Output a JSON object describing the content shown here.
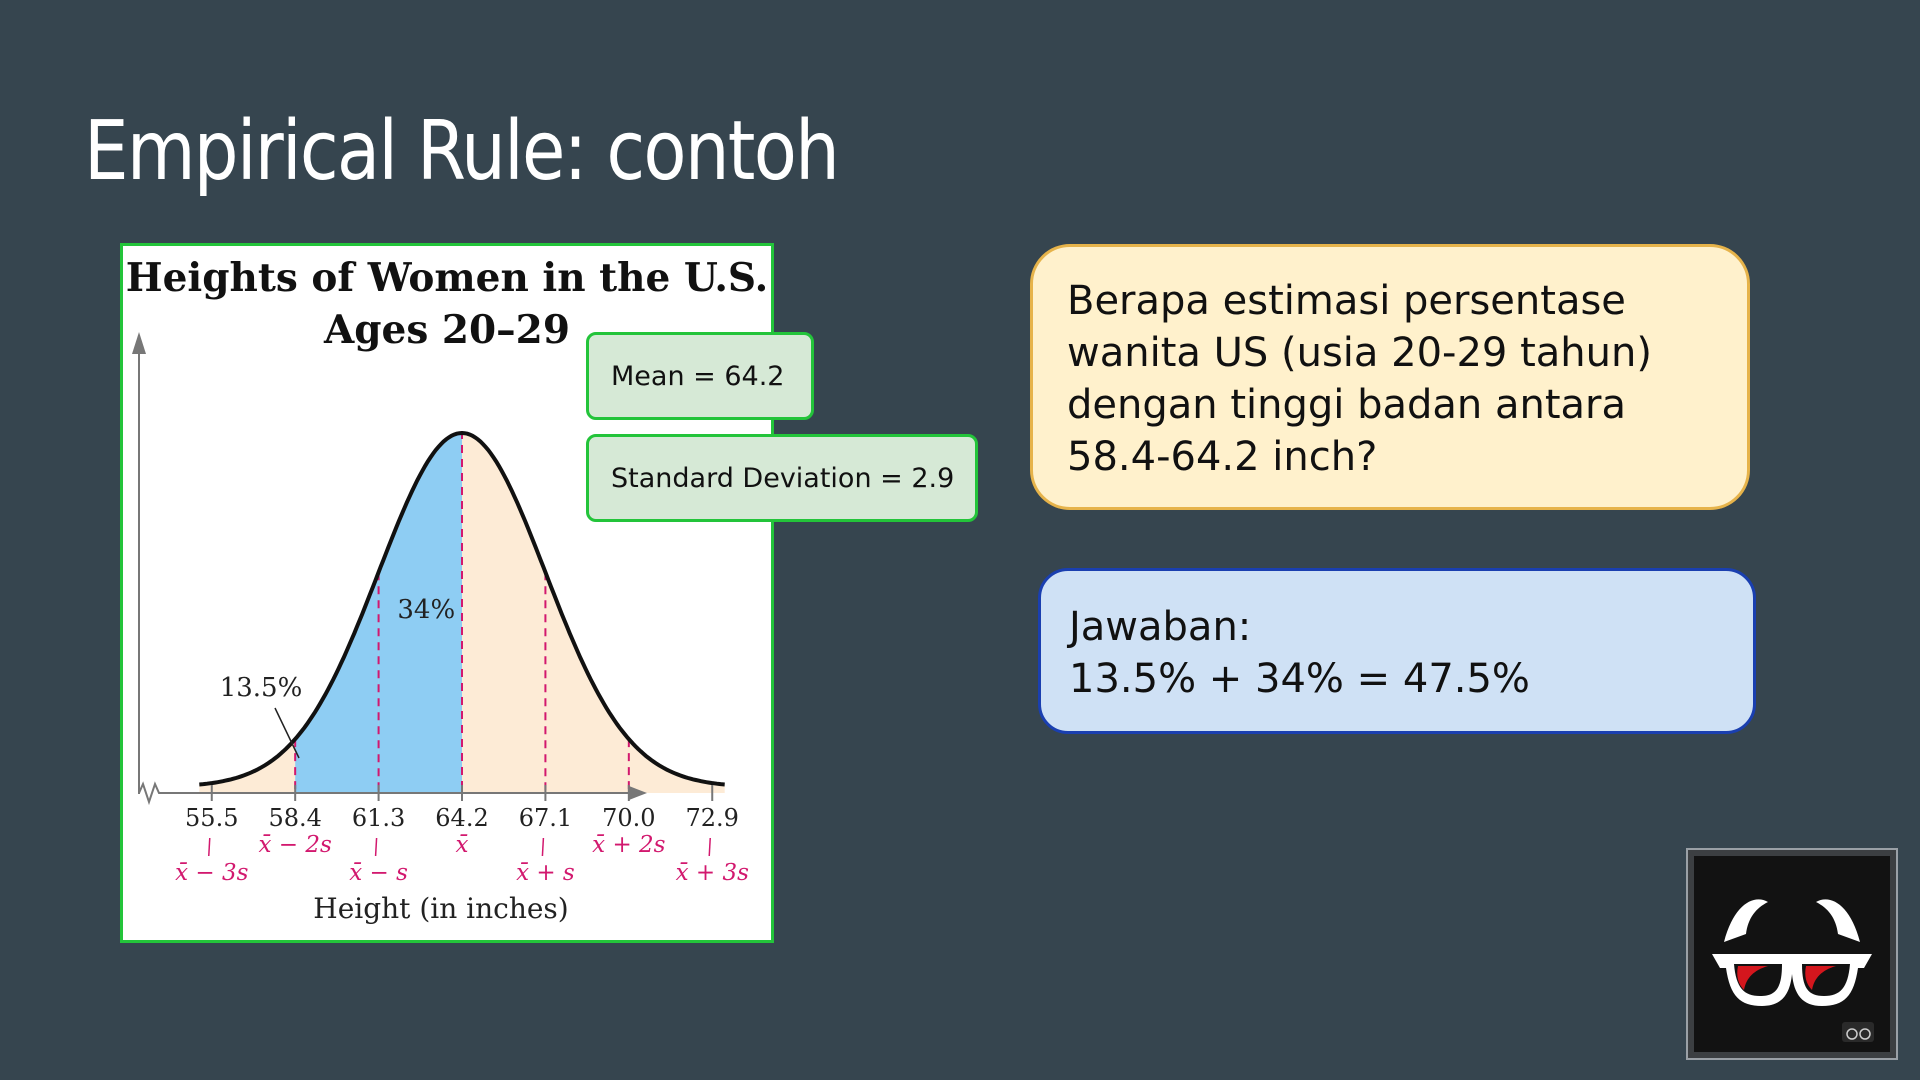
{
  "slide": {
    "title": "Empirical Rule: contoh"
  },
  "chart_data": {
    "type": "area",
    "title": "Heights of Women in the U.S.",
    "subtitle": "Ages 20–29",
    "xlabel": "Height (in inches)",
    "ylabel": "",
    "distribution": "normal",
    "mean": 64.2,
    "sd": 2.9,
    "xlim": [
      54.5,
      73.9
    ],
    "ticks": [
      {
        "value": 55.5,
        "label": "55.5",
        "sublabel": "x̄ − 3s"
      },
      {
        "value": 58.4,
        "label": "58.4",
        "sublabel": "x̄ − 2s"
      },
      {
        "value": 61.3,
        "label": "61.3",
        "sublabel": "x̄ − s"
      },
      {
        "value": 64.2,
        "label": "64.2",
        "sublabel": "x̄"
      },
      {
        "value": 67.1,
        "label": "67.1",
        "sublabel": "x̄ + s"
      },
      {
        "value": 70.0,
        "label": "70.0",
        "sublabel": "x̄ + 2s"
      },
      {
        "value": 72.9,
        "label": "72.9",
        "sublabel": "x̄ + 3s"
      }
    ],
    "shaded_regions": [
      {
        "from": 58.4,
        "to": 61.3,
        "percent": 13.5,
        "label": "13.5%"
      },
      {
        "from": 61.3,
        "to": 64.2,
        "percent": 34,
        "label": "34%"
      }
    ],
    "colors": {
      "highlight": "#8ecdf3",
      "background_fill": "#fdebd6",
      "curve": "#111111",
      "sd_lines": "#d2186e"
    }
  },
  "info": {
    "mean_label": "Mean = 64.2",
    "sd_label": "Standard Deviation = 2.9"
  },
  "question": {
    "lines": [
      "Berapa estimasi persentase",
      "wanita US (usia 20-29 tahun)",
      "dengan tinggi badan antara",
      "58.4-64.2 inch?"
    ]
  },
  "answer": {
    "label": "Jawaban:",
    "text": "13.5% + 34% = 47.5%"
  },
  "logo": {
    "icon": "glasses-icon",
    "colors": {
      "frame": "#ffffff",
      "lens": "#d4161d",
      "background": "#121212"
    }
  }
}
